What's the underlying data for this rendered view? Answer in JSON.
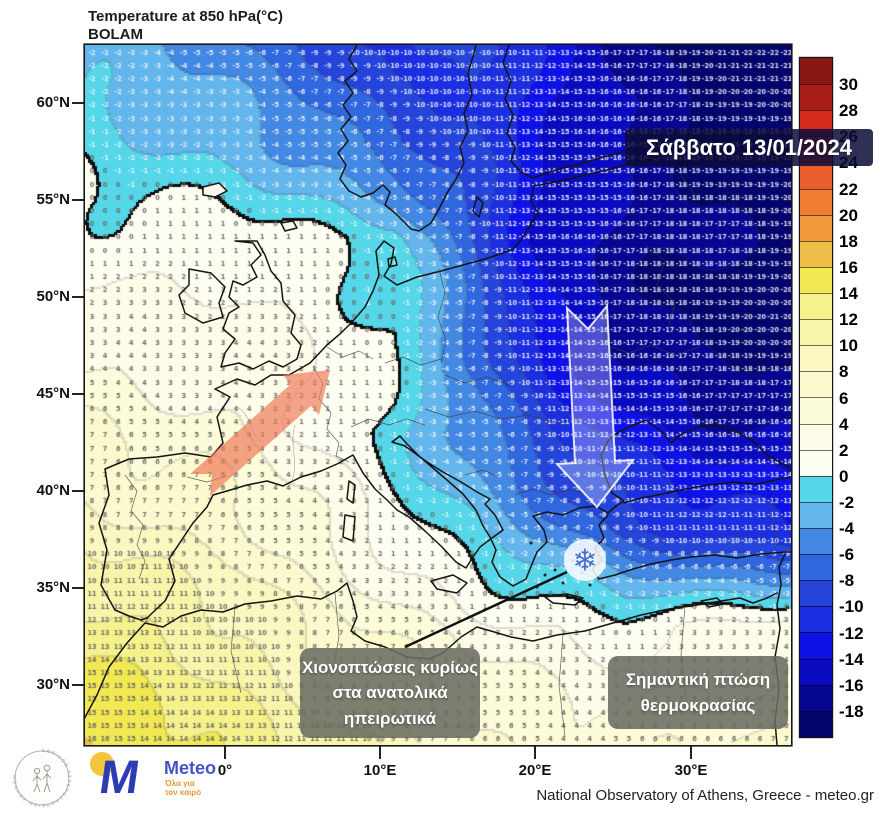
{
  "title": {
    "line1": "Temperature at 850 hPa(°C)",
    "line2": "BOLAM"
  },
  "date_label": "Σάββατο 13/01/2024",
  "annotations": {
    "snow": {
      "lines": [
        "Χιονοπτώσεις κυρίως",
        "στα ανατολικά",
        "ηπειρωτικά"
      ]
    },
    "drop": {
      "lines": [
        "Σημαντική πτώση",
        "θερμοκρασίας"
      ]
    }
  },
  "axes": {
    "lat_labels": [
      "60°N",
      "55°N",
      "50°N",
      "45°N",
      "40°N",
      "35°N",
      "30°N"
    ],
    "lon_labels": [
      "0°",
      "10°E",
      "20°E",
      "30°E"
    ]
  },
  "colorbar": {
    "labels": [
      30,
      28,
      26,
      24,
      22,
      20,
      18,
      16,
      14,
      12,
      10,
      8,
      6,
      4,
      2,
      0,
      -2,
      -4,
      -6,
      -8,
      -10,
      -12,
      -14,
      -16,
      -18
    ],
    "colors": [
      "#871713",
      "#a81d16",
      "#d22b1e",
      "#e24329",
      "#ea5d2d",
      "#f07d33",
      "#f19a3c",
      "#edbd48",
      "#f2e852",
      "#f6f28b",
      "#f8f5aa",
      "#faf8c0",
      "#fbf9cd",
      "#fcfbda",
      "#fdfce8",
      "#fefdf2",
      "#55d7e9",
      "#63b6ec",
      "#4389e4",
      "#3066de",
      "#2545da",
      "#1b2fe0",
      "#0f12e6",
      "#0a0bc0",
      "#060690",
      "#03046c"
    ]
  },
  "footer": {
    "attribution": "National Observatory of Athens, Greece - meteo.gr",
    "logo_m": "M",
    "meteo_name": "Meteo",
    "meteo_tagline": [
      "Όλα για",
      "τον καιρό"
    ],
    "seal_text": "ΕΘΝΙΚΟΝ ΑΣΤΕΡΟΣΚΟΠΕΙΟΝ ΑΘΗΝΩΝ"
  },
  "map_symbols": {
    "snowflake": "❄"
  },
  "chart_data": {
    "type": "heatmap",
    "title": "Temperature at 850 hPa (°C), BOLAM model, Saturday 13/01/2024",
    "units": "°C",
    "levels": {
      "min": -18,
      "max": 30,
      "step": 2
    },
    "lons": [
      -9,
      -4,
      1,
      6,
      11,
      16,
      21,
      26,
      31,
      37
    ],
    "lats": [
      63,
      58,
      53,
      48,
      43,
      38,
      33,
      27
    ],
    "temps": [
      [
        -3,
        -4,
        -6,
        -8,
        -11,
        -9,
        -13,
        -17,
        -20,
        -22
      ],
      [
        -1,
        -2,
        -3,
        -5,
        -8,
        -10,
        -14,
        -16,
        -18,
        -20
      ],
      [
        1,
        1,
        1,
        0,
        -1,
        -8,
        -15,
        -17,
        -18,
        -19
      ],
      [
        3,
        3,
        3,
        2,
        0,
        -6,
        -14,
        -17,
        -19,
        -20
      ],
      [
        6,
        5,
        4,
        2,
        -1,
        -5,
        -10,
        -13,
        -15,
        -16
      ],
      [
        9,
        8,
        7,
        4,
        1,
        -2,
        -5,
        -9,
        -11,
        -12
      ],
      [
        13,
        12,
        10,
        7,
        5,
        3,
        2,
        1,
        2,
        3
      ],
      [
        16,
        15,
        13,
        11,
        9,
        7,
        5,
        5,
        6,
        6
      ]
    ],
    "annotations": [
      {
        "kind": "warm-advection-arrow",
        "direction": "northeast"
      },
      {
        "kind": "cold-advection-arrow",
        "direction": "south"
      },
      {
        "kind": "snowfall-symbol",
        "location": "Aegean / eastern Greece"
      }
    ]
  }
}
